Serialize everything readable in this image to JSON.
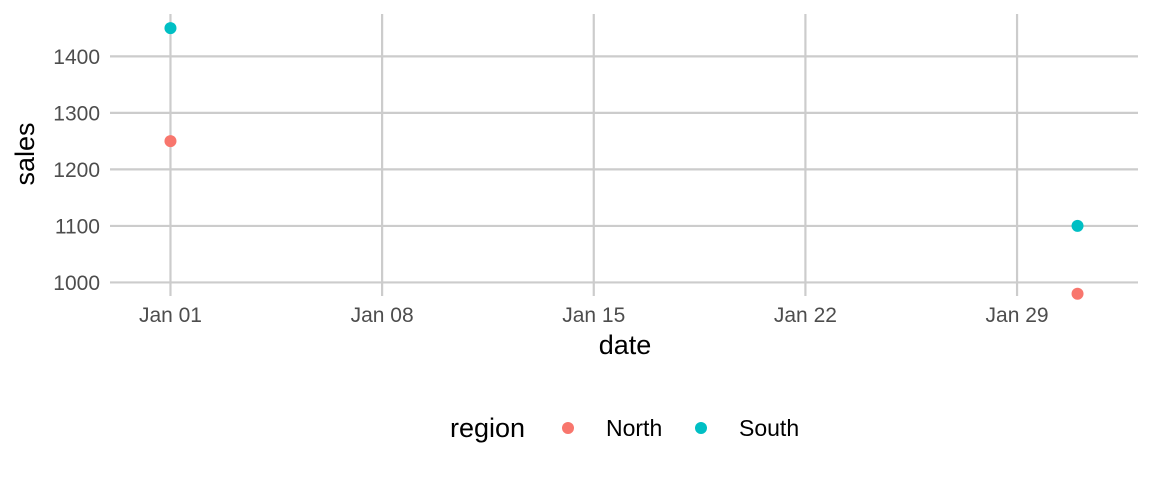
{
  "chart_data": {
    "type": "scatter",
    "xlabel": "date",
    "ylabel": "sales",
    "x_ticks": [
      "Jan 01",
      "Jan 08",
      "Jan 15",
      "Jan 22",
      "Jan 29"
    ],
    "x_tick_dates": [
      "2024-01-01",
      "2024-01-08",
      "2024-01-15",
      "2024-01-22",
      "2024-01-29"
    ],
    "y_ticks": [
      1000,
      1100,
      1200,
      1300,
      1400
    ],
    "xlim": [
      "2023-12-30",
      "2024-02-02"
    ],
    "ylim": [
      976,
      1475
    ],
    "grid": true,
    "legend": {
      "title": "region",
      "position": "bottom"
    },
    "series": [
      {
        "name": "North",
        "color": "#F8766D",
        "points": [
          {
            "x": "2024-01-01",
            "y": 1250
          },
          {
            "x": "2024-01-31",
            "y": 980
          }
        ]
      },
      {
        "name": "South",
        "color": "#00BFC4",
        "points": [
          {
            "x": "2024-01-01",
            "y": 1450
          },
          {
            "x": "2024-01-31",
            "y": 1100
          }
        ]
      }
    ]
  }
}
